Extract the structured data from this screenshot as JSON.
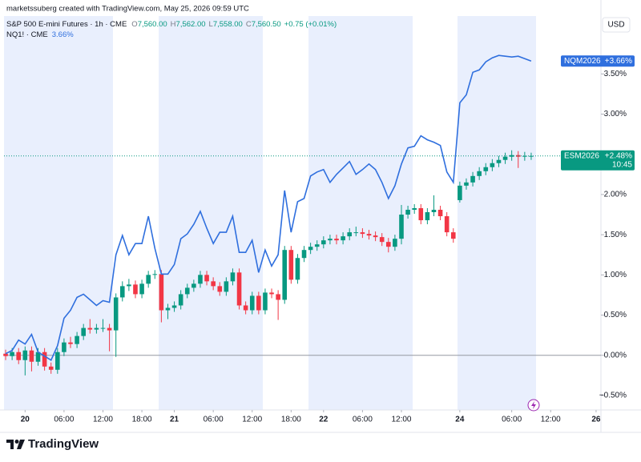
{
  "header": {
    "credit": "marketssuberg created with TradingView.com, May 25, 2026 09:59 UTC",
    "currency": "USD",
    "brand": "TradingView"
  },
  "chart_data": {
    "type": "candlestick",
    "title": "S&P 500 E-mini Futures · 1h · CME",
    "ohlc_legend": [
      {
        "key": "O",
        "value": "7,560.00"
      },
      {
        "key": "H",
        "value": "7,562.00"
      },
      {
        "key": "L",
        "value": "7,558.00"
      },
      {
        "key": "C",
        "value": "7,560.50"
      }
    ],
    "change": "+0.75 (+0.01%)",
    "series": [
      {
        "name": "ESM2026",
        "type": "candlestick",
        "up_color": "#089981",
        "down_color": "#f23645",
        "last_label": "+2.48%",
        "countdown": "10:45",
        "open": [
          0.02,
          -0.01,
          0.04,
          -0.06,
          0.06,
          -0.08,
          0.04,
          -0.14,
          -0.18,
          0.04,
          0.16,
          0.14,
          0.24,
          0.34,
          0.32,
          0.34,
          0.34,
          0.31,
          0.72,
          0.86,
          0.88,
          0.76,
          0.89,
          1.0,
          1.01,
          0.56,
          0.59,
          0.62,
          0.76,
          0.84,
          0.89,
          1.0,
          0.92,
          0.86,
          0.79,
          0.92,
          1.03,
          0.62,
          0.56,
          0.74,
          0.56,
          0.78,
          0.76,
          0.69,
          1.31,
          0.94,
          1.21,
          1.31,
          1.35,
          1.38,
          1.43,
          1.45,
          1.43,
          1.48,
          1.53,
          1.53,
          1.51,
          1.49,
          1.47,
          1.41,
          1.35,
          1.45,
          1.75,
          1.81,
          1.83,
          1.68,
          1.78,
          1.81,
          1.73,
          1.53,
          1.93,
          2.11,
          2.15,
          2.23,
          2.29,
          2.34,
          2.39,
          2.43,
          2.47,
          2.49,
          2.47,
          2.48
        ],
        "high": [
          0.07,
          0.09,
          0.09,
          0.11,
          0.11,
          0.09,
          0.09,
          -0.09,
          0.09,
          0.21,
          0.23,
          0.29,
          0.39,
          0.45,
          0.39,
          0.45,
          0.39,
          0.77,
          0.92,
          0.95,
          0.93,
          0.94,
          1.05,
          1.06,
          1.06,
          0.64,
          0.67,
          0.81,
          0.89,
          0.94,
          1.05,
          1.05,
          0.97,
          0.91,
          0.97,
          1.08,
          1.08,
          0.67,
          0.79,
          0.79,
          0.83,
          0.83,
          0.81,
          1.36,
          1.36,
          1.26,
          1.36,
          1.4,
          1.43,
          1.48,
          1.5,
          1.5,
          1.53,
          1.58,
          1.6,
          1.58,
          1.56,
          1.54,
          1.52,
          1.46,
          1.5,
          1.87,
          1.86,
          1.88,
          1.88,
          1.83,
          1.99,
          1.86,
          1.78,
          1.58,
          2.16,
          2.2,
          2.28,
          2.34,
          2.39,
          2.44,
          2.48,
          2.52,
          2.55,
          2.54,
          2.53,
          2.52
        ],
        "low": [
          -0.06,
          -0.06,
          -0.11,
          -0.25,
          -0.2,
          -0.13,
          -0.19,
          -0.23,
          -0.23,
          -0.01,
          0.09,
          0.09,
          0.19,
          0.27,
          0.27,
          0.29,
          0.05,
          -0.02,
          0.67,
          0.8,
          0.71,
          0.71,
          0.84,
          0.95,
          0.41,
          0.45,
          0.54,
          0.57,
          0.71,
          0.79,
          0.84,
          0.87,
          0.81,
          0.74,
          0.74,
          0.87,
          0.57,
          0.51,
          0.51,
          0.51,
          0.51,
          0.71,
          0.44,
          0.64,
          0.89,
          0.89,
          1.16,
          1.26,
          1.3,
          1.33,
          1.38,
          1.38,
          1.38,
          1.43,
          1.48,
          1.46,
          1.44,
          1.42,
          1.36,
          1.28,
          1.3,
          1.38,
          1.7,
          1.76,
          1.63,
          1.63,
          1.73,
          1.68,
          1.48,
          1.4,
          1.9,
          2.06,
          2.1,
          2.18,
          2.24,
          2.29,
          2.34,
          2.38,
          2.42,
          2.33,
          2.42,
          2.43
        ],
        "close": [
          -0.01,
          0.04,
          -0.06,
          0.06,
          -0.08,
          0.04,
          -0.14,
          -0.18,
          0.04,
          0.16,
          0.14,
          0.24,
          0.34,
          0.32,
          0.34,
          0.34,
          0.31,
          0.72,
          0.86,
          0.88,
          0.76,
          0.89,
          1.0,
          1.01,
          0.56,
          0.59,
          0.62,
          0.76,
          0.84,
          0.89,
          1.0,
          0.92,
          0.86,
          0.79,
          0.92,
          1.03,
          0.62,
          0.56,
          0.74,
          0.56,
          0.78,
          0.76,
          0.69,
          1.31,
          0.94,
          1.21,
          1.31,
          1.35,
          1.38,
          1.43,
          1.45,
          1.43,
          1.48,
          1.53,
          1.53,
          1.51,
          1.49,
          1.47,
          1.41,
          1.35,
          1.45,
          1.75,
          1.81,
          1.83,
          1.68,
          1.78,
          1.81,
          1.73,
          1.53,
          1.45,
          2.11,
          2.15,
          2.23,
          2.29,
          2.34,
          2.39,
          2.43,
          2.47,
          2.49,
          2.47,
          2.48,
          2.48
        ]
      },
      {
        "name": "NQM2026",
        "type": "line",
        "color": "#2f6fde",
        "legend": "NQ1! · CME",
        "legend_value": "3.66%",
        "last_label": "+3.66%",
        "values": [
          0.02,
          0.06,
          0.19,
          0.14,
          0.26,
          0.04,
          -0.01,
          -0.06,
          0.12,
          0.46,
          0.56,
          0.72,
          0.76,
          0.69,
          0.62,
          0.68,
          0.66,
          1.25,
          1.49,
          1.25,
          1.39,
          1.39,
          1.73,
          1.33,
          1.01,
          1.01,
          1.13,
          1.45,
          1.51,
          1.63,
          1.79,
          1.58,
          1.39,
          1.53,
          1.53,
          1.73,
          1.28,
          1.28,
          1.43,
          1.03,
          1.31,
          1.11,
          1.25,
          2.05,
          1.53,
          1.91,
          1.95,
          2.23,
          2.28,
          2.31,
          2.15,
          2.25,
          2.33,
          2.41,
          2.25,
          2.31,
          2.38,
          2.31,
          2.15,
          1.95,
          2.11,
          2.38,
          2.58,
          2.6,
          2.73,
          2.68,
          2.65,
          2.61,
          2.28,
          2.15,
          3.14,
          3.24,
          3.52,
          3.55,
          3.65,
          3.7,
          3.73,
          3.72,
          3.71,
          3.72,
          3.69,
          3.66
        ]
      }
    ],
    "ylim": [
      -0.66,
      4.22
    ],
    "yticks": [
      {
        "value": -0.5,
        "label": "−0.50%"
      },
      {
        "value": 0,
        "label": "0.00%"
      },
      {
        "value": 0.5,
        "label": "0.50%"
      },
      {
        "value": 1,
        "label": "1.00%"
      },
      {
        "value": 1.5,
        "label": "1.50%"
      },
      {
        "value": 2,
        "label": "2.00%"
      },
      {
        "value": 2.5,
        "label": "2.50%"
      },
      {
        "value": 3,
        "label": "3.00%"
      },
      {
        "value": 3.5,
        "label": "3.50%"
      }
    ],
    "baseline": 0,
    "xlim": [
      -0.25,
      91.75
    ],
    "xticks": [
      {
        "value": 3,
        "label": "20"
      },
      {
        "value": 9,
        "label": "06:00"
      },
      {
        "value": 15,
        "label": "12:00"
      },
      {
        "value": 21,
        "label": "18:00"
      },
      {
        "value": 26,
        "label": "21"
      },
      {
        "value": 32,
        "label": "06:00"
      },
      {
        "value": 38,
        "label": "12:00"
      },
      {
        "value": 44,
        "label": "18:00"
      },
      {
        "value": 49,
        "label": "22"
      },
      {
        "value": 55,
        "label": "06:00"
      },
      {
        "value": 61,
        "label": "12:00"
      },
      {
        "value": 70,
        "label": "24"
      },
      {
        "value": 78,
        "label": "06:00"
      },
      {
        "value": 84,
        "label": "12:00"
      },
      {
        "value": 91,
        "label": "26"
      }
    ]
  }
}
